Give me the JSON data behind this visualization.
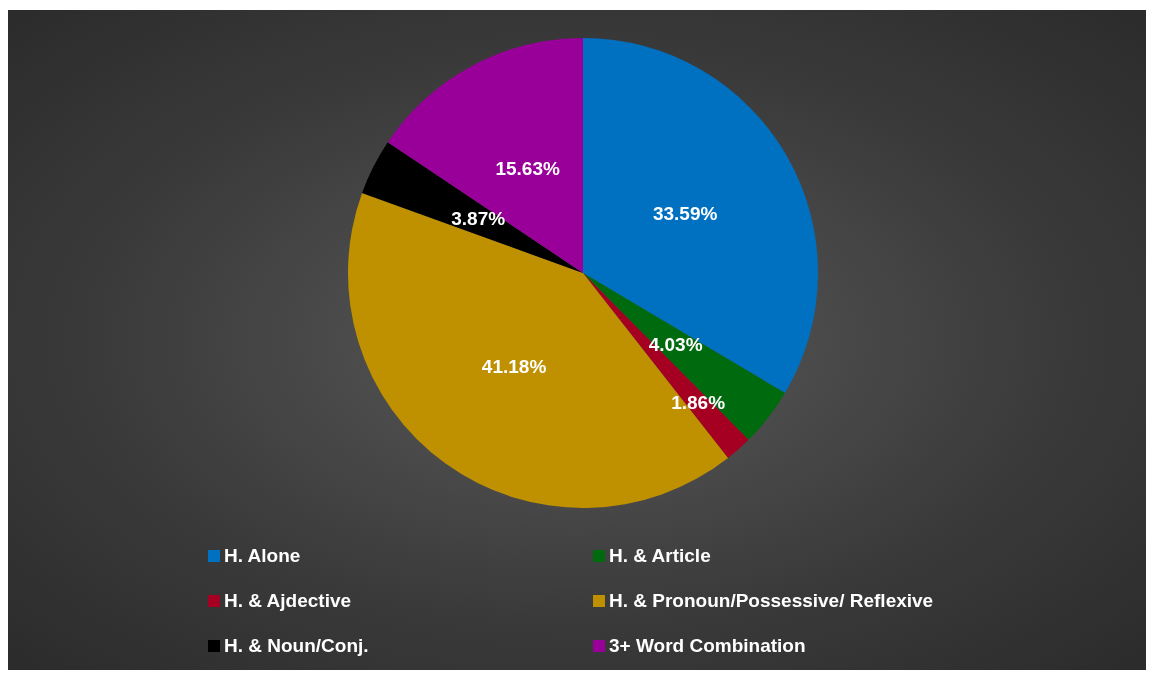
{
  "chart_data": {
    "type": "pie",
    "categories": [
      "H. Alone",
      "H. & Article",
      "H. & Ajdective",
      "H. & Pronoun/Possessive/ Reflexive",
      "H. & Noun/Conj.",
      "3+ Word Combination"
    ],
    "values": [
      33.59,
      4.03,
      1.86,
      41.18,
      3.87,
      15.63
    ],
    "colors": [
      "#0070c0",
      "#006b0e",
      "#a50021",
      "#bf9000",
      "#000000",
      "#990099"
    ],
    "value_labels": [
      "33.59%",
      "4.03%",
      "1.86%",
      "41.18%",
      "3.87%",
      "15.63%"
    ],
    "legend": "bottom"
  }
}
